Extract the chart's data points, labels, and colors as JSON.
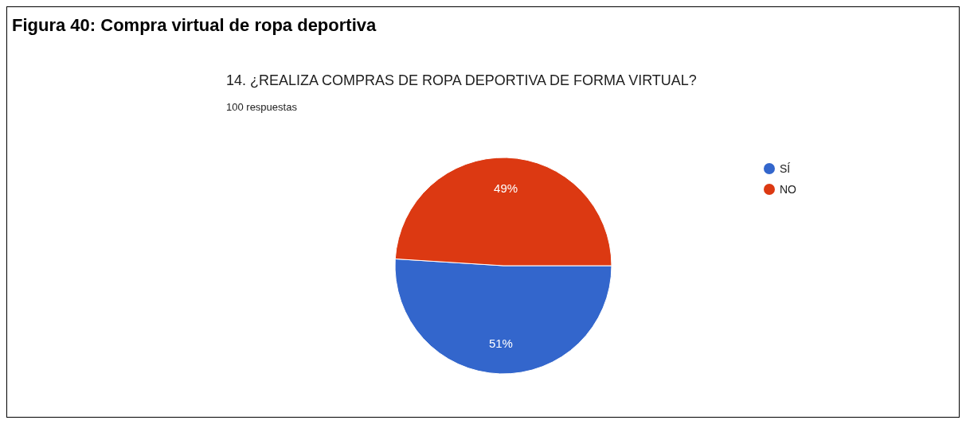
{
  "chart_data": {
    "type": "pie",
    "title": "Figura 40: Compra virtual de ropa deportiva",
    "subtitle": "14. ¿REALIZA COMPRAS DE ROPA DEPORTIVA DE FORMA VIRTUAL?",
    "annotations": [
      "100 respuestas"
    ],
    "categories": [
      "SÍ",
      "NO"
    ],
    "values": [
      51,
      49
    ],
    "colors": [
      "#3366cc",
      "#dc3912"
    ],
    "legend": "right",
    "value_labels": [
      "51%",
      "49%"
    ]
  }
}
